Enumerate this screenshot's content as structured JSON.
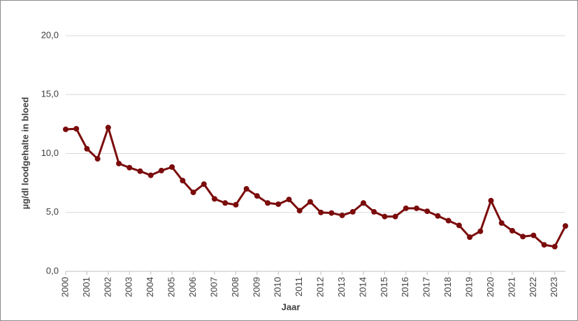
{
  "chart_data": {
    "type": "line",
    "y_label": "µg/dl loodgehalte in bloed",
    "x_label": "Jaar",
    "x": [
      2000,
      2000.5,
      2001,
      2001.5,
      2002,
      2002.5,
      2003,
      2003.5,
      2004,
      2004.5,
      2005,
      2005.5,
      2006,
      2006.5,
      2007,
      2007.5,
      2008,
      2008.5,
      2009,
      2009.5,
      2010,
      2010.5,
      2011,
      2011.5,
      2012,
      2012.5,
      2013,
      2013.5,
      2014,
      2014.5,
      2015,
      2015.5,
      2016,
      2016.5,
      2017,
      2017.5,
      2018,
      2018.5,
      2019,
      2019.5,
      2020,
      2020.5,
      2021,
      2021.5,
      2022,
      2022.5,
      2023,
      2023.5
    ],
    "series": [
      {
        "name": "loodgehalte",
        "color": "#7b0c0c",
        "values": [
          12.05,
          12.1,
          10.4,
          9.55,
          12.2,
          9.15,
          8.8,
          8.5,
          8.15,
          8.55,
          8.85,
          7.7,
          6.7,
          7.4,
          6.15,
          5.8,
          5.65,
          7.0,
          6.4,
          5.8,
          5.7,
          6.1,
          5.15,
          5.9,
          5.0,
          4.95,
          4.75,
          5.05,
          5.8,
          5.05,
          4.65,
          4.65,
          5.35,
          5.35,
          5.1,
          4.7,
          4.3,
          3.9,
          2.9,
          3.4,
          6.0,
          4.1,
          3.45,
          2.95,
          3.05,
          2.25,
          2.1,
          3.85
        ]
      }
    ],
    "xlim": [
      2000,
      2023.5
    ],
    "xticks": [
      2000,
      2001,
      2002,
      2003,
      2004,
      2005,
      2006,
      2007,
      2008,
      2009,
      2010,
      2011,
      2012,
      2013,
      2014,
      2015,
      2016,
      2017,
      2018,
      2019,
      2020,
      2021,
      2022,
      2023
    ],
    "ylim": [
      0,
      20
    ],
    "yticks": [
      {
        "value": 0,
        "label": "0,0"
      },
      {
        "value": 5,
        "label": "5,0"
      },
      {
        "value": 10,
        "label": "10,0"
      },
      {
        "value": 15,
        "label": "15,0"
      },
      {
        "value": 20,
        "label": "20,0"
      }
    ],
    "grid": true
  }
}
